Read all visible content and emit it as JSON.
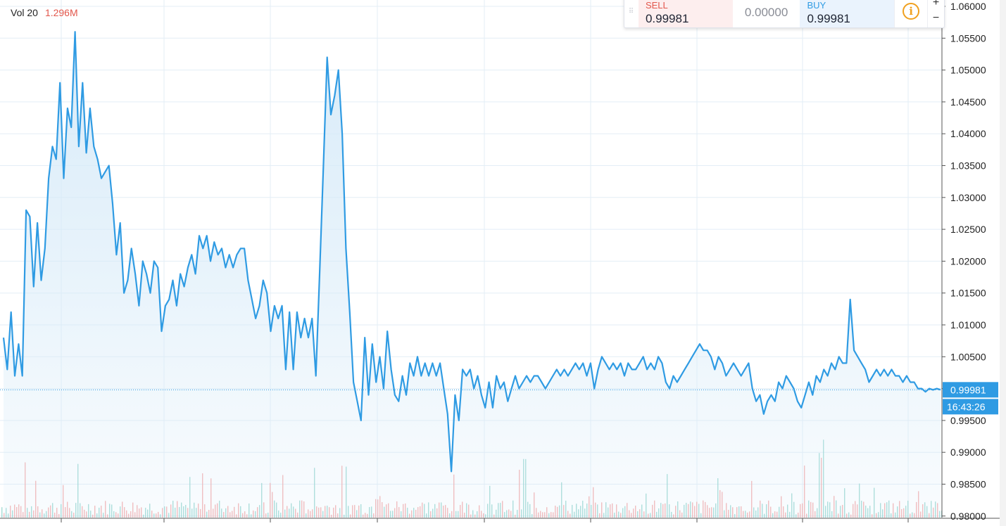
{
  "volume_legend": {
    "label": "Vol 20",
    "value": "1.296M"
  },
  "trade_panel": {
    "sell_label": "SELL",
    "sell_price": "0.99981",
    "spread": "0.00000",
    "buy_label": "BUY",
    "buy_price": "0.99981",
    "info_icon": "info-icon",
    "zoom_in": "+",
    "zoom_out": "−"
  },
  "price_scale": {
    "ticks": [
      "1.06000",
      "1.05500",
      "1.05000",
      "1.04500",
      "1.04000",
      "1.03500",
      "1.03000",
      "1.02500",
      "1.02000",
      "1.01500",
      "1.01000",
      "1.00500",
      "1.00000",
      "0.99500",
      "0.99000",
      "0.98500",
      "0.98000"
    ]
  },
  "last_price_label": "0.99981",
  "countdown_label": "16:43:26",
  "colors": {
    "line": "#2f9be3",
    "area_fill": "#d6eaf8",
    "up_volume": "#8ed3cc",
    "down_volume": "#f2a2a2",
    "grid": "#e3eef6",
    "price_badge": "#2f9be3"
  },
  "chart_data": {
    "type": "area",
    "title": "",
    "xlabel": "",
    "ylabel": "",
    "ylim": [
      0.98,
      1.062
    ],
    "last_price": 0.99981,
    "series": [
      {
        "values": [
          1.008,
          1.003,
          1.012,
          1.002,
          1.007,
          1.002,
          1.028,
          1.027,
          1.016,
          1.026,
          1.017,
          1.022,
          1.033,
          1.038,
          1.036,
          1.048,
          1.033,
          1.044,
          1.041,
          1.056,
          1.038,
          1.048,
          1.037,
          1.044,
          1.038,
          1.036,
          1.033,
          1.034,
          1.035,
          1.029,
          1.021,
          1.026,
          1.015,
          1.017,
          1.022,
          1.018,
          1.013,
          1.02,
          1.018,
          1.015,
          1.02,
          1.019,
          1.009,
          1.013,
          1.014,
          1.017,
          1.013,
          1.018,
          1.016,
          1.019,
          1.021,
          1.018,
          1.024,
          1.022,
          1.024,
          1.02,
          1.023,
          1.021,
          1.022,
          1.019,
          1.021,
          1.019,
          1.021,
          1.022,
          1.022,
          1.017,
          1.014,
          1.011,
          1.013,
          1.017,
          1.015,
          1.009,
          1.013,
          1.011,
          1.013,
          1.003,
          1.012,
          1.003,
          1.012,
          1.008,
          1.011,
          1.008,
          1.011,
          1.002,
          1.018,
          1.035,
          1.052,
          1.043,
          1.046,
          1.05,
          1.04,
          1.022,
          1.012,
          1.001,
          0.998,
          0.995,
          1.008,
          0.999,
          1.007,
          1.001,
          1.005,
          1.0,
          1.009,
          1.003,
          0.999,
          0.998,
          1.002,
          0.999,
          1.004,
          1.002,
          1.005,
          1.002,
          1.004,
          1.002,
          1.004,
          1.002,
          1.004,
          1.0,
          0.996,
          0.987,
          0.999,
          0.995,
          1.003,
          1.002,
          1.003,
          1.0,
          1.002,
          0.999,
          0.997,
          1.001,
          0.997,
          1.002,
          1.0,
          1.001,
          0.998,
          1.0,
          1.002,
          1.0,
          1.001,
          1.002,
          1.001,
          1.002,
          1.002,
          1.001,
          1.0,
          1.001,
          1.002,
          1.003,
          1.002,
          1.003,
          1.002,
          1.003,
          1.004,
          1.003,
          1.004,
          1.002,
          1.004,
          1.0,
          1.003,
          1.005,
          1.004,
          1.003,
          1.004,
          1.003,
          1.004,
          1.002,
          1.004,
          1.003,
          1.003,
          1.004,
          1.005,
          1.003,
          1.004,
          1.003,
          1.005,
          1.004,
          1.001,
          1.0,
          1.002,
          1.001,
          1.002,
          1.003,
          1.004,
          1.005,
          1.006,
          1.007,
          1.006,
          1.006,
          1.005,
          1.003,
          1.005,
          1.004,
          1.002,
          1.003,
          1.004,
          1.003,
          1.002,
          1.003,
          1.004,
          1.0,
          0.998,
          0.999,
          0.996,
          0.998,
          0.999,
          0.998,
          1.001,
          1.0,
          1.002,
          1.001,
          1.0,
          0.998,
          0.997,
          0.999,
          1.001,
          0.999,
          1.002,
          1.001,
          1.003,
          1.002,
          1.004,
          1.003,
          1.005,
          1.004,
          1.004,
          1.014,
          1.006,
          1.005,
          1.004,
          1.003,
          1.001,
          1.002,
          1.003,
          1.002,
          1.003,
          1.002,
          1.003,
          1.002,
          1.002,
          1.001,
          1.002,
          1.001,
          1.001,
          1.0,
          1.0,
          0.9995,
          1.0,
          0.9998,
          1.0,
          0.99981
        ]
      }
    ],
    "x_tick_count": 9
  }
}
